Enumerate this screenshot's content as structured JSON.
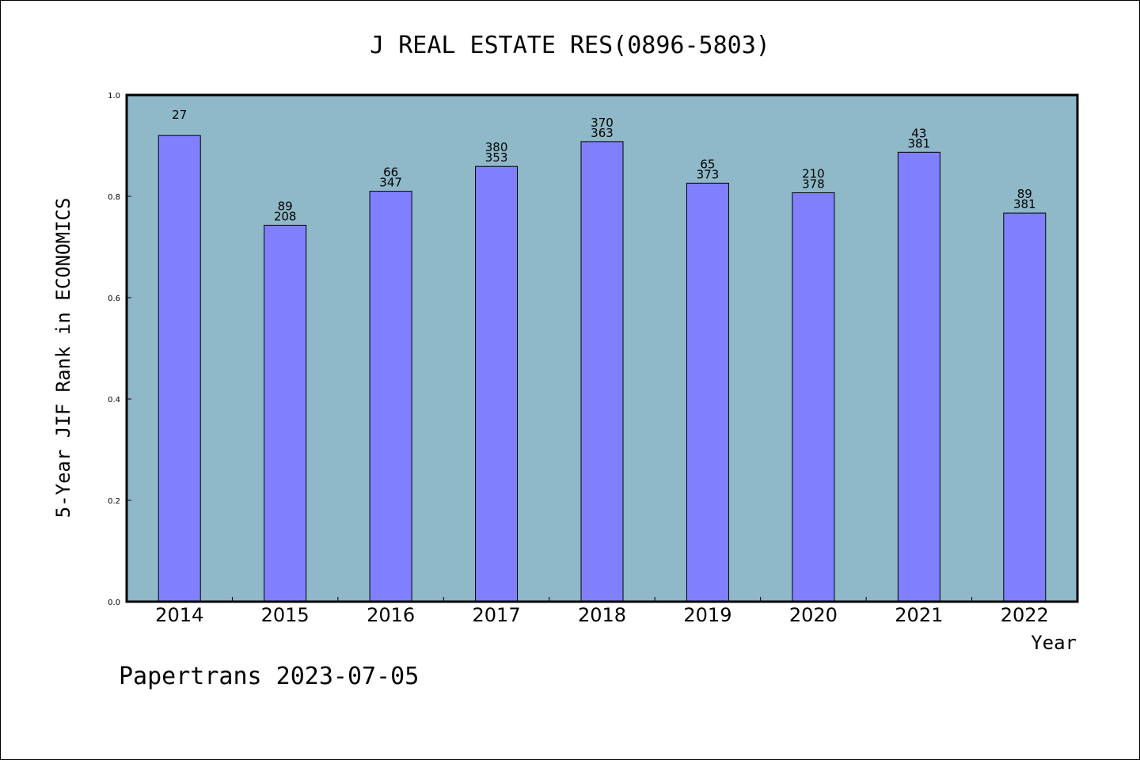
{
  "chart_data": {
    "type": "bar",
    "title": "J REAL ESTATE RES(0896-5803)",
    "xlabel": "Year",
    "ylabel": "5-Year JIF Rank in ECONOMICS",
    "ylim": [
      0,
      1.0
    ],
    "yticks": [
      "0.0",
      "0.2",
      "0.4",
      "0.6",
      "0.8",
      "1.0"
    ],
    "categories": [
      "2014",
      "2015",
      "2016",
      "2017",
      "2018",
      "2019",
      "2020",
      "2021",
      "2022"
    ],
    "values": [
      0.92,
      0.743,
      0.81,
      0.859,
      0.908,
      0.826,
      0.807,
      0.887,
      0.767
    ],
    "annotations": [
      {
        "rank": "27",
        "total": ""
      },
      {
        "rank": "89",
        "total": "208"
      },
      {
        "rank": "66",
        "total": "347"
      },
      {
        "rank": "380",
        "total": "353"
      },
      {
        "rank": "370",
        "total": "363"
      },
      {
        "rank": "65",
        "total": "373"
      },
      {
        "rank": "210",
        "total": "378"
      },
      {
        "rank": "43",
        "total": "381"
      },
      {
        "rank": "89",
        "total": "381"
      }
    ],
    "grid": false,
    "colors": {
      "plot_background": "#8fb8c8",
      "bar_fill": "#8080ff",
      "bar_edge": "#000000"
    }
  },
  "footer": "Papertrans 2023-07-05"
}
